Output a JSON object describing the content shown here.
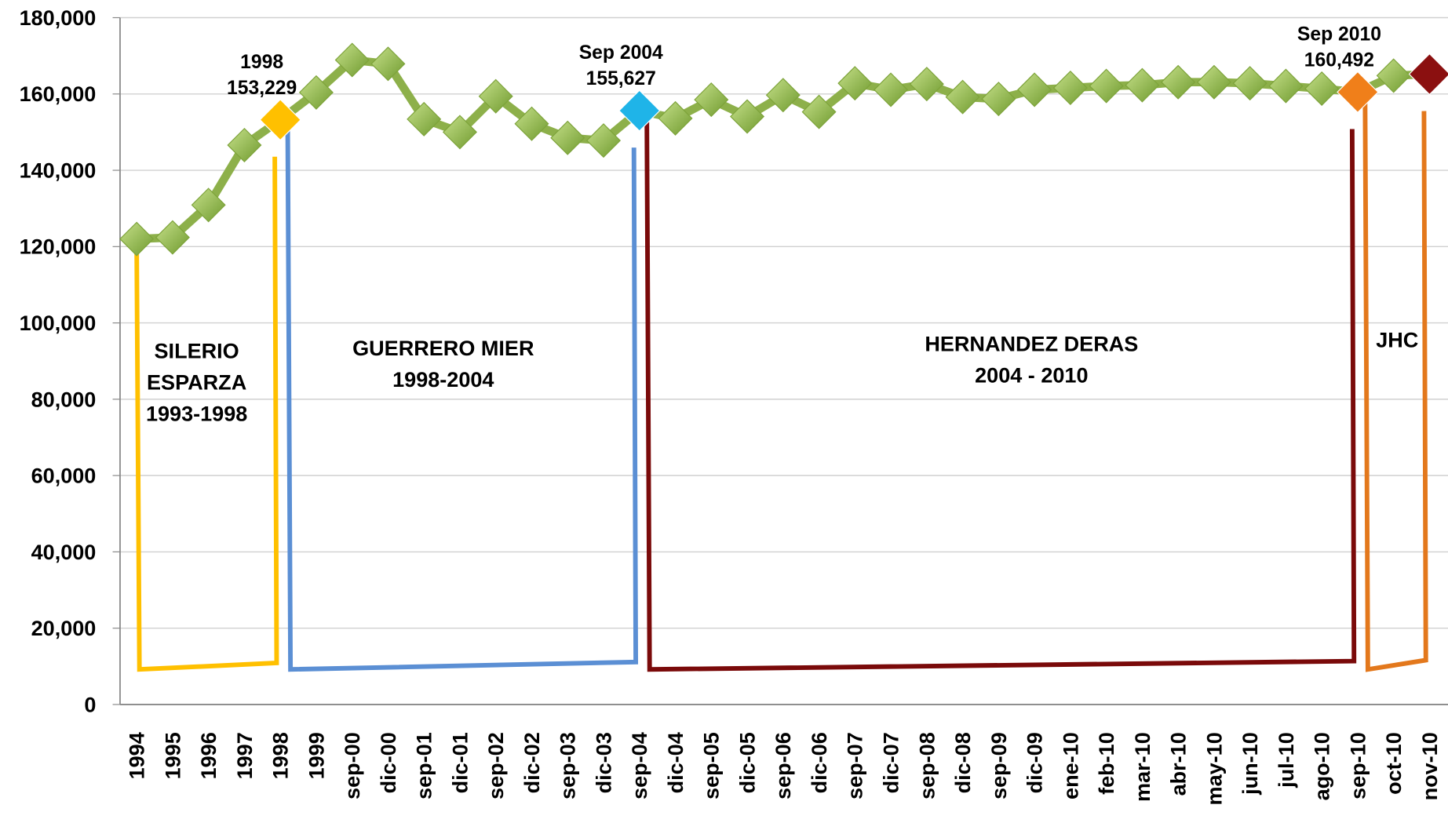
{
  "chart_data": {
    "type": "line",
    "categories": [
      "1994",
      "1995",
      "1996",
      "1997",
      "1998",
      "1999",
      "sep-00",
      "dic-00",
      "sep-01",
      "dic-01",
      "sep-02",
      "dic-02",
      "sep-03",
      "dic-03",
      "sep-04",
      "dic-04",
      "sep-05",
      "dic-05",
      "sep-06",
      "dic-06",
      "sep-07",
      "dic-07",
      "sep-08",
      "dic-08",
      "sep-09",
      "dic-09",
      "ene-10",
      "feb-10",
      "mar-10",
      "abr-10",
      "may-10",
      "jun-10",
      "jul-10",
      "ago-10",
      "sep-10",
      "oct-10",
      "nov-10"
    ],
    "series": [
      {
        "color": "#8db04a",
        "values": [
          122000,
          122400,
          130900,
          146600,
          153229,
          160400,
          168900,
          167900,
          153400,
          150000,
          159400,
          152200,
          148500,
          147800,
          155627,
          153600,
          158500,
          154100,
          159700,
          155300,
          162800,
          161100,
          162600,
          159200,
          158700,
          161100,
          161600,
          162100,
          162300,
          163100,
          163100,
          162800,
          162100,
          161400,
          160492,
          164800,
          165200
        ]
      }
    ],
    "ylim": [
      0,
      180000
    ],
    "yticks": [
      0,
      {
        "value": 20000,
        "label": "20,000"
      },
      {
        "value": 40000,
        "label": "40,000"
      },
      {
        "value": 60000,
        "label": "60,000"
      },
      {
        "value": 80000,
        "label": "80,000"
      },
      {
        "value": 100000,
        "label": "100,000"
      },
      {
        "value": 120000,
        "label": "120,000"
      },
      {
        "value": 140000,
        "label": "140,000"
      },
      {
        "value": 160000,
        "label": "160,000"
      },
      {
        "value": 180000,
        "label": "180,000"
      }
    ],
    "grid": true,
    "annotations": [
      {
        "category": "1998",
        "text": "1998",
        "value_label": "153,229",
        "color": "#ffc000"
      },
      {
        "category": "sep-04",
        "text": "Sep 2004",
        "value_label": "155,627",
        "color": "#1fb4e8"
      },
      {
        "category": "sep-10",
        "text": "Sep 2010",
        "value_label": "160,492",
        "color": "#f07f1a"
      },
      {
        "category": "nov-10",
        "color": "#8b1010"
      }
    ],
    "periods": [
      {
        "lines": [
          "SILERIO",
          "ESPARZA",
          "1993-1998"
        ],
        "color": "#ffc000",
        "from": "1994",
        "to": "1998"
      },
      {
        "lines": [
          "GUERRERO MIER",
          "1998-2004"
        ],
        "color": "#5b8fd4",
        "from": "1998",
        "to": "sep-04"
      },
      {
        "lines": [
          "HERNANDEZ DERAS",
          "2004 - 2010"
        ],
        "color": "#7a0a0a",
        "from": "sep-04",
        "to": "sep-10"
      },
      {
        "lines": [
          "JHC"
        ],
        "color": "#e3781c",
        "from": "sep-10",
        "to": "nov-10"
      }
    ]
  }
}
